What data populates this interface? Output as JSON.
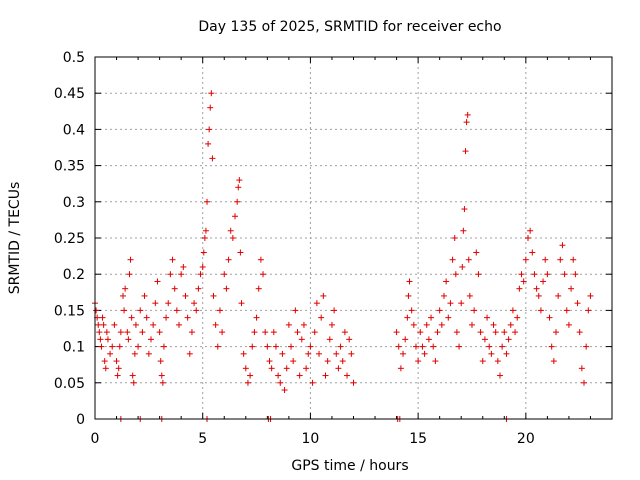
{
  "chart_data": {
    "type": "scatter",
    "title": "Day 135 of 2025, SRMTID for receiver echo",
    "xlabel": "GPS time / hours",
    "ylabel": "SRMTID / TECUs",
    "xlim": [
      0,
      24
    ],
    "ylim": [
      0,
      0.5
    ],
    "xticks": [
      0,
      5,
      10,
      15,
      20
    ],
    "xtick_labels": [
      "0",
      "5",
      "10",
      "15",
      "20"
    ],
    "yticks": [
      0,
      0.05,
      0.1,
      0.15,
      0.2,
      0.25,
      0.3,
      0.35,
      0.4,
      0.45,
      0.5
    ],
    "ytick_labels": [
      "0",
      "0.05",
      "0.1",
      "0.15",
      "0.2",
      "0.25",
      "0.3",
      "0.35",
      "0.4",
      "0.45",
      "0.5"
    ],
    "grid": true,
    "marker": "plus",
    "color": "#e00000",
    "series": [
      {
        "name": "SRMTID",
        "points": [
          [
            0.0,
            0.16
          ],
          [
            0.05,
            0.15
          ],
          [
            0.1,
            0.14
          ],
          [
            0.15,
            0.13
          ],
          [
            0.2,
            0.12
          ],
          [
            0.25,
            0.11
          ],
          [
            0.3,
            0.1
          ],
          [
            0.35,
            0.14
          ],
          [
            0.4,
            0.13
          ],
          [
            0.45,
            0.08
          ],
          [
            0.5,
            0.07
          ],
          [
            0.55,
            0.12
          ],
          [
            0.6,
            0.11
          ],
          [
            0.7,
            0.09
          ],
          [
            0.8,
            0.1
          ],
          [
            0.9,
            0.13
          ],
          [
            1.0,
            0.08
          ],
          [
            1.05,
            0.06
          ],
          [
            1.1,
            0.07
          ],
          [
            1.15,
            0.1
          ],
          [
            1.2,
            0.12
          ],
          [
            1.3,
            0.17
          ],
          [
            1.35,
            0.15
          ],
          [
            1.4,
            0.18
          ],
          [
            1.5,
            0.12
          ],
          [
            1.55,
            0.11
          ],
          [
            1.6,
            0.2
          ],
          [
            1.65,
            0.22
          ],
          [
            1.7,
            0.14
          ],
          [
            1.75,
            0.06
          ],
          [
            1.8,
            0.05
          ],
          [
            1.85,
            0.09
          ],
          [
            1.9,
            0.13
          ],
          [
            2.0,
            0.1
          ],
          [
            2.1,
            0.15
          ],
          [
            2.2,
            0.12
          ],
          [
            2.3,
            0.17
          ],
          [
            2.4,
            0.14
          ],
          [
            2.5,
            0.09
          ],
          [
            2.6,
            0.11
          ],
          [
            2.7,
            0.13
          ],
          [
            2.8,
            0.16
          ],
          [
            2.9,
            0.19
          ],
          [
            3.0,
            0.12
          ],
          [
            3.05,
            0.08
          ],
          [
            3.1,
            0.06
          ],
          [
            3.15,
            0.05
          ],
          [
            3.2,
            0.1
          ],
          [
            3.3,
            0.14
          ],
          [
            3.4,
            0.16
          ],
          [
            3.5,
            0.2
          ],
          [
            3.6,
            0.22
          ],
          [
            3.7,
            0.18
          ],
          [
            3.8,
            0.15
          ],
          [
            3.9,
            0.13
          ],
          [
            4.0,
            0.2
          ],
          [
            4.1,
            0.21
          ],
          [
            4.2,
            0.17
          ],
          [
            4.3,
            0.14
          ],
          [
            4.4,
            0.09
          ],
          [
            4.5,
            0.12
          ],
          [
            4.6,
            0.16
          ],
          [
            4.7,
            0.15
          ],
          [
            4.8,
            0.18
          ],
          [
            4.9,
            0.2
          ],
          [
            5.0,
            0.21
          ],
          [
            5.05,
            0.23
          ],
          [
            5.1,
            0.25
          ],
          [
            5.15,
            0.26
          ],
          [
            5.2,
            0.3
          ],
          [
            5.25,
            0.38
          ],
          [
            5.3,
            0.4
          ],
          [
            5.35,
            0.43
          ],
          [
            5.4,
            0.45
          ],
          [
            5.45,
            0.36
          ],
          [
            5.5,
            0.17
          ],
          [
            5.6,
            0.13
          ],
          [
            5.7,
            0.1
          ],
          [
            5.8,
            0.15
          ],
          [
            5.9,
            0.12
          ],
          [
            6.0,
            0.2
          ],
          [
            6.1,
            0.18
          ],
          [
            6.2,
            0.22
          ],
          [
            6.3,
            0.26
          ],
          [
            6.4,
            0.25
          ],
          [
            6.5,
            0.28
          ],
          [
            6.6,
            0.3
          ],
          [
            6.65,
            0.32
          ],
          [
            6.7,
            0.33
          ],
          [
            6.75,
            0.23
          ],
          [
            6.8,
            0.16
          ],
          [
            6.9,
            0.09
          ],
          [
            7.0,
            0.07
          ],
          [
            7.1,
            0.05
          ],
          [
            7.2,
            0.06
          ],
          [
            7.3,
            0.1
          ],
          [
            7.4,
            0.12
          ],
          [
            7.5,
            0.14
          ],
          [
            7.6,
            0.18
          ],
          [
            7.7,
            0.22
          ],
          [
            7.8,
            0.2
          ],
          [
            7.9,
            0.12
          ],
          [
            8.0,
            0.1
          ],
          [
            8.1,
            0.08
          ],
          [
            8.2,
            0.07
          ],
          [
            8.3,
            0.12
          ],
          [
            8.4,
            0.1
          ],
          [
            8.5,
            0.06
          ],
          [
            8.6,
            0.05
          ],
          [
            8.7,
            0.09
          ],
          [
            8.8,
            0.04
          ],
          [
            8.9,
            0.07
          ],
          [
            9.0,
            0.13
          ],
          [
            9.1,
            0.1
          ],
          [
            9.2,
            0.08
          ],
          [
            9.3,
            0.15
          ],
          [
            9.4,
            0.12
          ],
          [
            9.5,
            0.06
          ],
          [
            9.6,
            0.11
          ],
          [
            9.7,
            0.13
          ],
          [
            9.8,
            0.07
          ],
          [
            9.9,
            0.09
          ],
          [
            10.0,
            0.1
          ],
          [
            10.1,
            0.05
          ],
          [
            10.2,
            0.12
          ],
          [
            10.3,
            0.16
          ],
          [
            10.4,
            0.09
          ],
          [
            10.5,
            0.14
          ],
          [
            10.6,
            0.17
          ],
          [
            10.7,
            0.06
          ],
          [
            10.8,
            0.08
          ],
          [
            10.9,
            0.11
          ],
          [
            11.0,
            0.13
          ],
          [
            11.1,
            0.15
          ],
          [
            11.2,
            0.09
          ],
          [
            11.3,
            0.07
          ],
          [
            11.4,
            0.1
          ],
          [
            11.5,
            0.08
          ],
          [
            11.6,
            0.12
          ],
          [
            11.7,
            0.06
          ],
          [
            11.8,
            0.11
          ],
          [
            11.9,
            0.09
          ],
          [
            12.0,
            0.05
          ],
          [
            14.0,
            0.12
          ],
          [
            14.1,
            0.1
          ],
          [
            14.2,
            0.07
          ],
          [
            14.3,
            0.09
          ],
          [
            14.4,
            0.11
          ],
          [
            14.5,
            0.14
          ],
          [
            14.55,
            0.17
          ],
          [
            14.6,
            0.19
          ],
          [
            14.7,
            0.15
          ],
          [
            14.8,
            0.13
          ],
          [
            14.9,
            0.1
          ],
          [
            15.0,
            0.08
          ],
          [
            15.1,
            0.12
          ],
          [
            15.2,
            0.1
          ],
          [
            15.3,
            0.09
          ],
          [
            15.4,
            0.13
          ],
          [
            15.5,
            0.11
          ],
          [
            15.6,
            0.14
          ],
          [
            15.7,
            0.1
          ],
          [
            15.8,
            0.08
          ],
          [
            15.9,
            0.12
          ],
          [
            16.0,
            0.15
          ],
          [
            16.1,
            0.13
          ],
          [
            16.2,
            0.17
          ],
          [
            16.3,
            0.19
          ],
          [
            16.4,
            0.14
          ],
          [
            16.5,
            0.16
          ],
          [
            16.6,
            0.22
          ],
          [
            16.7,
            0.25
          ],
          [
            16.75,
            0.2
          ],
          [
            16.8,
            0.12
          ],
          [
            16.9,
            0.1
          ],
          [
            17.0,
            0.16
          ],
          [
            17.05,
            0.21
          ],
          [
            17.1,
            0.26
          ],
          [
            17.15,
            0.29
          ],
          [
            17.2,
            0.37
          ],
          [
            17.25,
            0.41
          ],
          [
            17.3,
            0.42
          ],
          [
            17.35,
            0.22
          ],
          [
            17.4,
            0.17
          ],
          [
            17.5,
            0.13
          ],
          [
            17.6,
            0.15
          ],
          [
            17.7,
            0.23
          ],
          [
            17.8,
            0.2
          ],
          [
            17.9,
            0.12
          ],
          [
            18.0,
            0.08
          ],
          [
            18.1,
            0.11
          ],
          [
            18.2,
            0.14
          ],
          [
            18.3,
            0.1
          ],
          [
            18.4,
            0.09
          ],
          [
            18.5,
            0.13
          ],
          [
            18.6,
            0.12
          ],
          [
            18.7,
            0.08
          ],
          [
            18.8,
            0.06
          ],
          [
            18.9,
            0.1
          ],
          [
            19.0,
            0.12
          ],
          [
            19.1,
            0.09
          ],
          [
            19.2,
            0.11
          ],
          [
            19.3,
            0.13
          ],
          [
            19.4,
            0.15
          ],
          [
            19.5,
            0.12
          ],
          [
            19.6,
            0.14
          ],
          [
            19.7,
            0.18
          ],
          [
            19.8,
            0.2
          ],
          [
            19.9,
            0.19
          ],
          [
            20.0,
            0.22
          ],
          [
            20.1,
            0.25
          ],
          [
            20.2,
            0.26
          ],
          [
            20.3,
            0.23
          ],
          [
            20.4,
            0.2
          ],
          [
            20.5,
            0.18
          ],
          [
            20.6,
            0.17
          ],
          [
            20.7,
            0.15
          ],
          [
            20.8,
            0.19
          ],
          [
            20.9,
            0.22
          ],
          [
            21.0,
            0.2
          ],
          [
            21.1,
            0.14
          ],
          [
            21.2,
            0.1
          ],
          [
            21.3,
            0.08
          ],
          [
            21.4,
            0.12
          ],
          [
            21.5,
            0.17
          ],
          [
            21.6,
            0.22
          ],
          [
            21.7,
            0.24
          ],
          [
            21.8,
            0.2
          ],
          [
            21.9,
            0.15
          ],
          [
            22.0,
            0.13
          ],
          [
            22.1,
            0.18
          ],
          [
            22.2,
            0.22
          ],
          [
            22.3,
            0.2
          ],
          [
            22.4,
            0.16
          ],
          [
            22.5,
            0.12
          ],
          [
            22.6,
            0.07
          ],
          [
            22.7,
            0.05
          ],
          [
            22.8,
            0.1
          ],
          [
            22.9,
            0.15
          ],
          [
            23.0,
            0.17
          ],
          [
            1.2,
            0.0
          ],
          [
            2.1,
            0.0
          ],
          [
            3.1,
            0.0
          ],
          [
            5.2,
            0.0
          ],
          [
            8.05,
            0.0
          ],
          [
            8.15,
            0.0
          ],
          [
            14.05,
            0.0
          ],
          [
            14.15,
            0.0
          ],
          [
            19.1,
            0.0
          ]
        ]
      }
    ]
  }
}
